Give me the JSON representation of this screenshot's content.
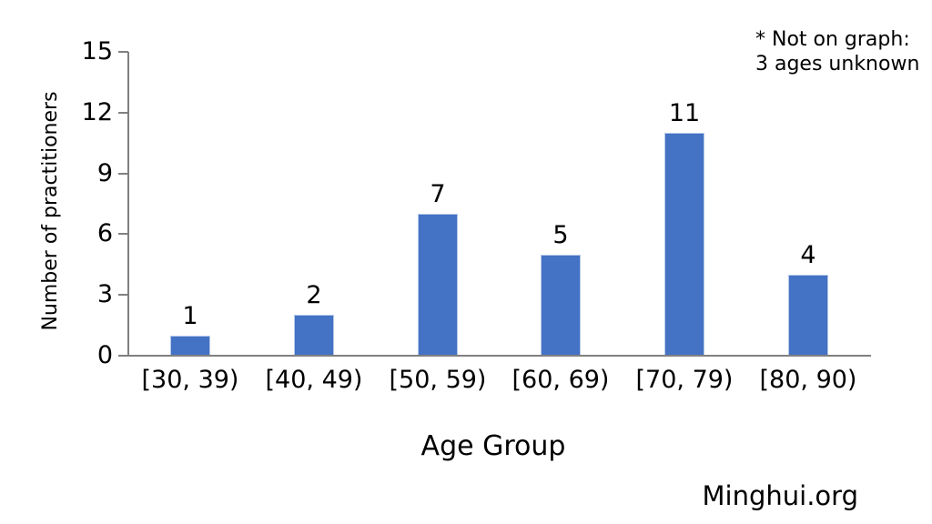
{
  "chart_data": {
    "type": "bar",
    "title": "",
    "categories": [
      "[30, 39)",
      "[40, 49)",
      "[50, 59)",
      "[60, 69)",
      "[70, 79)",
      "[80, 90)"
    ],
    "values": [
      1,
      2,
      7,
      5,
      11,
      4
    ],
    "xlabel": "Age Group",
    "ylabel": "Number of practitioners",
    "ylim": [
      0,
      15
    ],
    "yticks": [
      0,
      3,
      6,
      9,
      12,
      15
    ],
    "grid": false,
    "legend": "none",
    "bar_value_labels_shown": true,
    "annotation_lines": [
      "* Not on graph:",
      "3 ages unknown"
    ],
    "colors": {
      "bar_fill": "#4472C4",
      "bar_edge": "#B4C7E7",
      "axis": "#808080",
      "text": "#000000",
      "background": "#FFFFFF"
    }
  },
  "footer": {
    "source": "Minghui.org"
  }
}
